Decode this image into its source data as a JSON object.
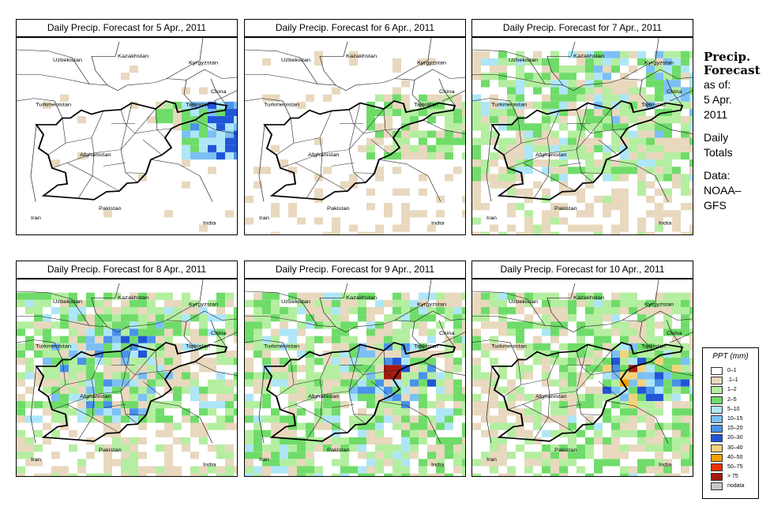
{
  "panels": [
    {
      "title": "Daily Precip. Forecast for  5 Apr., 2011",
      "day": 0
    },
    {
      "title": "Daily Precip. Forecast for  6 Apr., 2011",
      "day": 1
    },
    {
      "title": "Daily Precip. Forecast for  7 Apr., 2011",
      "day": 2
    },
    {
      "title": "Daily Precip. Forecast for  8 Apr., 2011",
      "day": 3
    },
    {
      "title": "Daily Precip. Forecast for  9 Apr., 2011",
      "day": 4
    },
    {
      "title": "Daily Precip. Forecast for  10 Apr., 2011",
      "day": 5
    }
  ],
  "map_labels": {
    "uzbekistan": "Uzbekistan",
    "kazakhstan": "Kazakhstan",
    "kyrgyzstan": "Kyrgyzstan",
    "china": "China",
    "tajikistan": "Tajikistan",
    "turkmenistan": "Turkmenistan",
    "afghanistan": "Afghanistan",
    "pakistan": "Pakistan",
    "iran": "Iran",
    "india": "India"
  },
  "side": {
    "title_line1": "Precip.",
    "title_line2": "Forecast",
    "asof": "as of:",
    "date_line1": "5 Apr.",
    "date_line2": "2011",
    "daily": "Daily",
    "totals": "Totals",
    "data": "Data:",
    "source1": "NOAA–",
    "source2": "GFS"
  },
  "legend": {
    "title": "PPT (mm)",
    "items": [
      {
        "label": "0–1",
        "color": "#ffffff"
      },
      {
        "label": ".1–1",
        "color": "#e8d8be"
      },
      {
        "label": "1–2",
        "color": "#b4eea0"
      },
      {
        "label": "2–5",
        "color": "#6fdc6a"
      },
      {
        "label": "5–10",
        "color": "#aee6f8"
      },
      {
        "label": "10–15",
        "color": "#7cc0f4"
      },
      {
        "label": "15–20",
        "color": "#4a92ea"
      },
      {
        "label": "20–30",
        "color": "#2155d8"
      },
      {
        "label": "30–40",
        "color": "#f4d27a"
      },
      {
        "label": "40–50",
        "color": "#f6a000"
      },
      {
        "label": "50–75",
        "color": "#ef3000"
      },
      {
        "label": "> 75",
        "color": "#a51a10"
      },
      {
        "label": "nodata",
        "color": "#c8c8c8"
      }
    ]
  }
}
